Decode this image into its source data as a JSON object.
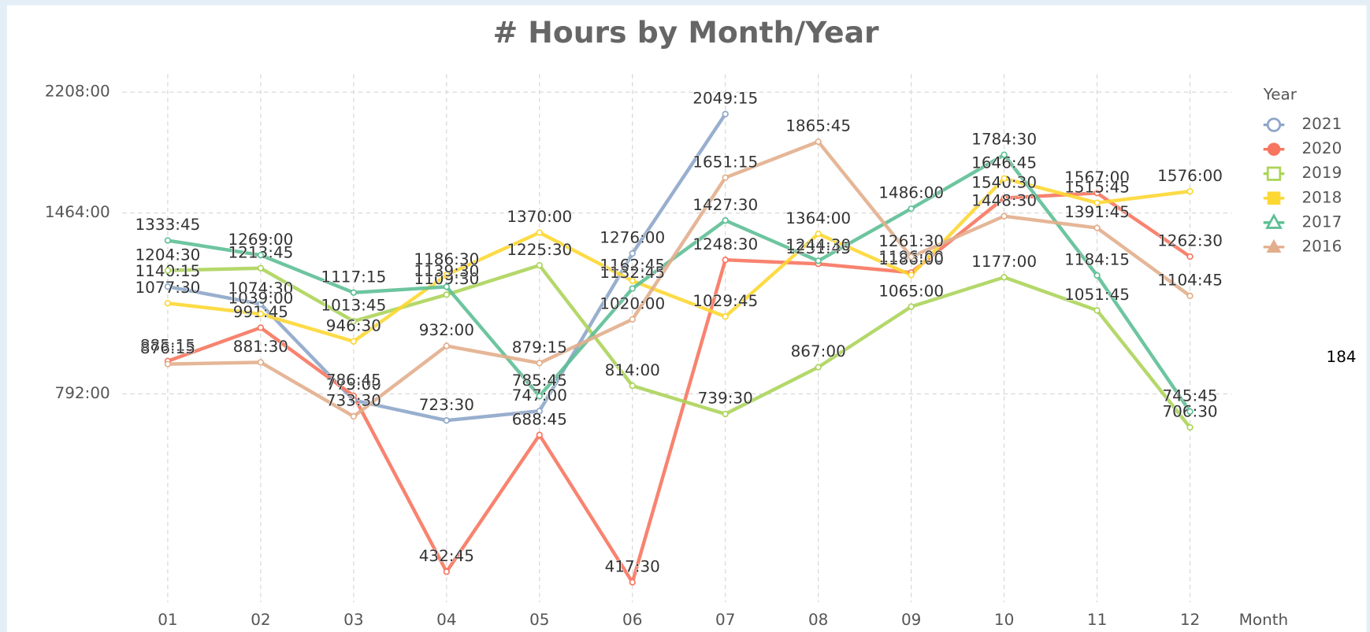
{
  "chart_data": {
    "type": "line",
    "title": "# Hours by Month/Year",
    "x_label": "Month",
    "legend_title": "Year",
    "legend": "right",
    "annotations": [
      "184"
    ],
    "log_scale": true,
    "grid": true,
    "categories": [
      "01",
      "02",
      "03",
      "04",
      "05",
      "06",
      "07",
      "08",
      "09",
      "10",
      "11",
      "12"
    ],
    "ylim": [
      390,
      2312
    ],
    "yticks": [
      {
        "value": 792,
        "label": "792:00"
      },
      {
        "value": 1464,
        "label": "1464:00"
      },
      {
        "value": 2208,
        "label": "2208:00"
      }
    ],
    "series": [
      {
        "name": "2021",
        "color": "#8da6c9",
        "marker": "circle-open",
        "values": [
          1140.25,
          1074.5,
          775,
          723.5,
          747,
          1276,
          2049.25,
          null,
          null,
          null,
          null,
          null
        ],
        "value_labels": [
          "1140:15",
          "1074:30",
          "775:00",
          "723:30",
          "747:00",
          "1276:00",
          "2049:15",
          null,
          null,
          null,
          null,
          null
        ]
      },
      {
        "name": "2020",
        "color": "#f7765f",
        "marker": "circle",
        "values": [
          885.25,
          991.75,
          786.75,
          432.75,
          688.75,
          417.5,
          1248.5,
          1231.75,
          1196,
          1540.5,
          1567,
          1262.5
        ],
        "value_labels": [
          "885:15",
          "991:45",
          "786:45",
          "432:45",
          "688:45",
          "417:30",
          "1248:30",
          "1231:45",
          "1196:00",
          "1540:30",
          "1567:00",
          "1262:30"
        ]
      },
      {
        "name": "2019",
        "color": "#acd45a",
        "marker": "square-open",
        "values": [
          1204.5,
          1213.75,
          1013.75,
          1109.5,
          1225.5,
          814,
          739.5,
          867,
          1065,
          1177,
          1051.75,
          706.5
        ],
        "value_labels": [
          "1204:30",
          "1213:45",
          "1013:45",
          "1109:30",
          "1225:30",
          "814:00",
          "739:30",
          "867:00",
          "1065:00",
          "1177:00",
          "1051:45",
          "706:30"
        ]
      },
      {
        "name": "2018",
        "color": "#fdd732",
        "marker": "square",
        "values": [
          1077.5,
          1039,
          946.5,
          1186.5,
          1370,
          1162.75,
          1029.75,
          1364,
          1186,
          1646.75,
          1515.75,
          1576
        ],
        "value_labels": [
          "1077:30",
          "1039:00",
          "946:30",
          "1186:30",
          "1370:00",
          "1162:45",
          "1029:45",
          "1364:00",
          "1186:00",
          "1646:45",
          "1515:45",
          "1576:00"
        ]
      },
      {
        "name": "2017",
        "color": "#5dbf95",
        "marker": "triangle-open",
        "values": [
          1333.75,
          1269,
          1117.25,
          1139.5,
          785.75,
          1132.75,
          1427.5,
          1244.5,
          1486,
          1784.5,
          1184.25,
          745.75
        ],
        "value_labels": [
          "1333:45",
          "1269:00",
          "1117:15",
          "1139:30",
          "785:45",
          "1132:45",
          "1427:30",
          "1244:30",
          "1486:00",
          "1784:30",
          "1184:15",
          "745:45"
        ]
      },
      {
        "name": "2016",
        "color": "#e2ae8c",
        "marker": "triangle",
        "values": [
          876.25,
          881.5,
          733.5,
          932,
          879.25,
          1020,
          1651.25,
          1865.75,
          1261.5,
          1448.5,
          1391.75,
          1104.75
        ],
        "value_labels": [
          "876:15",
          "881:30",
          "733:30",
          "932:00",
          "879:15",
          "1020:00",
          "1651:15",
          "1865:45",
          "1261:30",
          "1448:30",
          "1391:45",
          "1104:45"
        ]
      }
    ]
  }
}
